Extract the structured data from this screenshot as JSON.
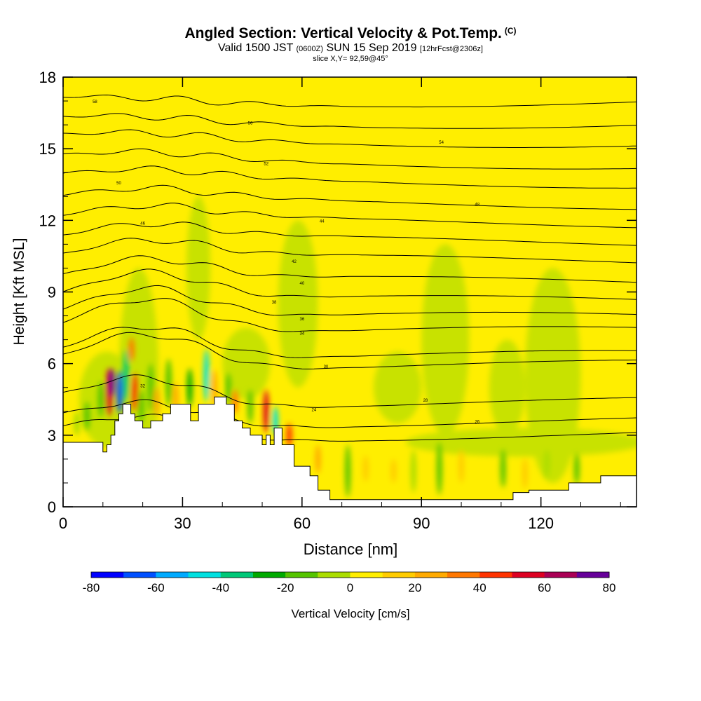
{
  "header": {
    "title": "Angled Section: Vertical Velocity & Pot.Temp.",
    "title_units": "(C)",
    "subtitle_valid": "Valid 1500 JST",
    "subtitle_zulu": "(0600Z)",
    "subtitle_date": "SUN 15 Sep 2019",
    "subtitle_fcst": "[12hrFcst@2306z]",
    "slice": "slice X,Y= 92,59@45°"
  },
  "colors": {
    "terrain": "#ffffff",
    "contour": "#000000",
    "background_field": "#ffee00"
  },
  "chart_data": {
    "type": "heatmap",
    "xlabel": "Distance [nm]",
    "ylabel": "Height [Kft MSL]",
    "xlim": [
      0,
      144
    ],
    "ylim": [
      0,
      18
    ],
    "x_ticks": [
      0,
      30,
      60,
      90,
      120
    ],
    "y_ticks": [
      0,
      3,
      6,
      9,
      12,
      15,
      18
    ],
    "colorbar": {
      "label": "Vertical Velocity [cm/s]",
      "range": [
        -80,
        80
      ],
      "tick_labels": [
        "-80",
        "-60",
        "-40",
        "-20",
        "0",
        "20",
        "40",
        "60",
        "80"
      ],
      "colors": [
        "#0000ff",
        "#0050ff",
        "#00aaff",
        "#00e0e0",
        "#00c878",
        "#00aa00",
        "#55c400",
        "#aadd00",
        "#ffee00",
        "#ffcc00",
        "#ffaa00",
        "#ff7700",
        "#ff3300",
        "#dd0022",
        "#aa0055",
        "#660099"
      ]
    },
    "terrain_profile": {
      "x": [
        0,
        10,
        10,
        11,
        11,
        12,
        12,
        13,
        13,
        14,
        14,
        15,
        15,
        17,
        17,
        18,
        18,
        20,
        20,
        22,
        22,
        25,
        25,
        27,
        27,
        32,
        32,
        34,
        34,
        38,
        38,
        41,
        41,
        43,
        43,
        45,
        45,
        47,
        47,
        50,
        50,
        51,
        51,
        52,
        52,
        53,
        53,
        55,
        55,
        58,
        58,
        62,
        62,
        64,
        64,
        67,
        67,
        69,
        69,
        113,
        113,
        117,
        117,
        127,
        127,
        135,
        135,
        144
      ],
      "y": [
        2.7,
        2.7,
        2.3,
        2.3,
        2.6,
        2.6,
        3.0,
        3.0,
        3.6,
        3.6,
        3.9,
        3.9,
        4.3,
        4.3,
        3.9,
        3.9,
        3.6,
        3.6,
        3.3,
        3.3,
        3.6,
        3.6,
        3.9,
        3.9,
        4.3,
        4.3,
        3.6,
        3.6,
        4.3,
        4.3,
        4.6,
        4.6,
        4.3,
        4.3,
        3.6,
        3.6,
        3.3,
        3.3,
        3.0,
        3.0,
        2.6,
        2.6,
        3.0,
        3.0,
        2.6,
        2.6,
        3.3,
        3.3,
        2.6,
        2.6,
        1.7,
        1.7,
        1.3,
        1.3,
        0.7,
        0.7,
        0.3,
        0.3,
        0.3,
        0.3,
        0.6,
        0.6,
        0.7,
        0.7,
        1.0,
        1.0,
        1.3,
        1.3
      ]
    },
    "velocity_cells": [
      {
        "x": 11.5,
        "y": 4.8,
        "w": 1.6,
        "h": 2.0,
        "value": 55
      },
      {
        "x": 12.2,
        "y": 5.2,
        "w": 0.8,
        "h": 1.2,
        "value": 80
      },
      {
        "x": 14.2,
        "y": 4.8,
        "w": 1.5,
        "h": 1.8,
        "value": -70
      },
      {
        "x": 15.8,
        "y": 5.5,
        "w": 1.3,
        "h": 2.2,
        "value": -40
      },
      {
        "x": 18.0,
        "y": 4.8,
        "w": 1.2,
        "h": 1.6,
        "value": 40
      },
      {
        "x": 17.2,
        "y": 6.6,
        "w": 1.2,
        "h": 1.0,
        "value": 35
      },
      {
        "x": 19.6,
        "y": 4.2,
        "w": 1.3,
        "h": 1.4,
        "value": -20
      },
      {
        "x": 22.0,
        "y": 5.0,
        "w": 1.4,
        "h": 2.0,
        "value": -15
      },
      {
        "x": 23.5,
        "y": 4.4,
        "w": 1.0,
        "h": 1.2,
        "value": 25
      },
      {
        "x": 26.5,
        "y": 5.2,
        "w": 1.6,
        "h": 2.0,
        "value": -20
      },
      {
        "x": 28.3,
        "y": 4.6,
        "w": 0.9,
        "h": 1.2,
        "value": 20
      },
      {
        "x": 31.8,
        "y": 5.0,
        "w": 1.4,
        "h": 1.6,
        "value": -25
      },
      {
        "x": 36.0,
        "y": 5.5,
        "w": 1.2,
        "h": 2.2,
        "value": -45
      },
      {
        "x": 38.0,
        "y": 5.0,
        "w": 1.0,
        "h": 1.5,
        "value": 20
      },
      {
        "x": 41.5,
        "y": 4.9,
        "w": 1.2,
        "h": 1.4,
        "value": -15
      },
      {
        "x": 43.2,
        "y": 4.4,
        "w": 0.9,
        "h": 1.0,
        "value": 30
      },
      {
        "x": 47.0,
        "y": 4.2,
        "w": 1.3,
        "h": 1.4,
        "value": -20
      },
      {
        "x": 51.0,
        "y": 4.0,
        "w": 1.3,
        "h": 1.8,
        "value": 55
      },
      {
        "x": 53.3,
        "y": 3.6,
        "w": 0.9,
        "h": 1.2,
        "value": -45
      },
      {
        "x": 56.8,
        "y": 3.0,
        "w": 1.0,
        "h": 1.0,
        "value": 40
      },
      {
        "x": 6.0,
        "y": 3.8,
        "w": 1.4,
        "h": 1.2,
        "value": -20
      },
      {
        "x": 3.5,
        "y": 3.5,
        "w": 1.6,
        "h": 1.0,
        "value": -10
      },
      {
        "x": 9.5,
        "y": 4.5,
        "w": 1.5,
        "h": 1.5,
        "value": -15
      },
      {
        "x": 64.0,
        "y": 2.0,
        "w": 0.9,
        "h": 1.2,
        "value": 20
      },
      {
        "x": 71.5,
        "y": 1.5,
        "w": 1.2,
        "h": 2.2,
        "value": -20
      },
      {
        "x": 88.0,
        "y": 1.5,
        "w": 1.1,
        "h": 1.8,
        "value": -10
      },
      {
        "x": 94.5,
        "y": 1.6,
        "w": 1.2,
        "h": 2.2,
        "value": -20
      },
      {
        "x": 100.0,
        "y": 1.7,
        "w": 0.8,
        "h": 1.4,
        "value": 15
      },
      {
        "x": 110.5,
        "y": 1.6,
        "w": 0.9,
        "h": 1.6,
        "value": -15
      },
      {
        "x": 116.0,
        "y": 1.4,
        "w": 0.8,
        "h": 1.3,
        "value": 15
      },
      {
        "x": 121.5,
        "y": 1.8,
        "w": 0.7,
        "h": 1.2,
        "value": -10
      },
      {
        "x": 129.0,
        "y": 1.6,
        "w": 0.8,
        "h": 1.3,
        "value": -15
      },
      {
        "x": 76.0,
        "y": 1.6,
        "w": 0.7,
        "h": 1.1,
        "value": 12
      },
      {
        "x": 83.0,
        "y": 1.5,
        "w": 0.7,
        "h": 1.0,
        "value": 12
      }
    ],
    "greenish_regions": [
      {
        "x": 14.0,
        "y": 10.0,
        "w": 10.0,
        "h": 9.0,
        "value": 0
      },
      {
        "x": 31.0,
        "y": 13.0,
        "w": 6.0,
        "h": 6.0,
        "value": -5
      },
      {
        "x": 54.0,
        "y": 12.0,
        "w": 10.0,
        "h": 7.0,
        "value": -5
      },
      {
        "x": 90.0,
        "y": 11.0,
        "w": 12.0,
        "h": 8.0,
        "value": -5
      },
      {
        "x": 116.0,
        "y": 10.0,
        "w": 14.0,
        "h": 9.0,
        "value": -5
      },
      {
        "x": 78.0,
        "y": 6.5,
        "w": 12.0,
        "h": 3.0,
        "value": -5
      },
      {
        "x": 107.0,
        "y": 7.0,
        "w": 9.0,
        "h": 4.0,
        "value": -5
      },
      {
        "x": 86.0,
        "y": 3.3,
        "w": 60.0,
        "h": 1.2,
        "value": -5
      },
      {
        "x": 4.0,
        "y": 6.5,
        "w": 14.0,
        "h": 4.0,
        "value": -5
      },
      {
        "x": 40.0,
        "y": 7.5,
        "w": 12.0,
        "h": 3.0,
        "value": -5
      }
    ],
    "theta_contours": [
      {
        "label": "24",
        "base": 3.0,
        "amp": 0.9,
        "label_x": 63,
        "label_y": 4.1
      },
      {
        "label": "26",
        "base": 3.55,
        "amp": 1.0,
        "label_x": 104,
        "label_y": 3.6
      },
      {
        "label": "28",
        "base": 4.35,
        "amp": 1.3,
        "label_x": 91,
        "label_y": 4.5
      },
      {
        "label": "30",
        "base": 5.9,
        "amp": 1.6,
        "label_x": 66,
        "label_y": 5.9
      },
      {
        "label": "32",
        "base": 6.3,
        "amp": 1.5,
        "label_x": 20,
        "label_y": 5.1
      },
      {
        "label": "34",
        "base": 7.3,
        "amp": 1.6,
        "label_x": 60,
        "label_y": 7.3
      },
      {
        "label": "36",
        "base": 7.9,
        "amp": 1.4,
        "label_x": 60,
        "label_y": 7.9
      },
      {
        "label": "38",
        "base": 8.6,
        "amp": 1.3,
        "label_x": 53,
        "label_y": 8.6
      },
      {
        "label": "40",
        "base": 9.4,
        "amp": 1.0,
        "label_x": 60,
        "label_y": 9.4
      },
      {
        "label": "42",
        "base": 10.3,
        "amp": 0.8,
        "label_x": 58,
        "label_y": 10.3
      },
      {
        "label": "44",
        "base": 11.1,
        "amp": 0.6,
        "label_x": 65,
        "label_y": 12.0
      },
      {
        "label": "46",
        "base": 11.9,
        "amp": 0.5,
        "label_x": 20,
        "label_y": 11.9
      },
      {
        "label": "48",
        "base": 12.7,
        "amp": 0.4,
        "label_x": 104,
        "label_y": 12.7
      },
      {
        "label": "50",
        "base": 13.6,
        "amp": 0.3,
        "label_x": 14,
        "label_y": 13.6
      },
      {
        "label": "52",
        "base": 14.4,
        "amp": 0.25,
        "label_x": 51,
        "label_y": 14.4
      },
      {
        "label": "54",
        "base": 15.3,
        "amp": 0.2,
        "label_x": 95,
        "label_y": 15.3
      },
      {
        "label": "56",
        "base": 16.1,
        "amp": 0.15,
        "label_x": 47,
        "label_y": 16.1
      },
      {
        "label": "58",
        "base": 17.0,
        "amp": 0.1,
        "label_x": 8,
        "label_y": 17.0
      }
    ]
  }
}
